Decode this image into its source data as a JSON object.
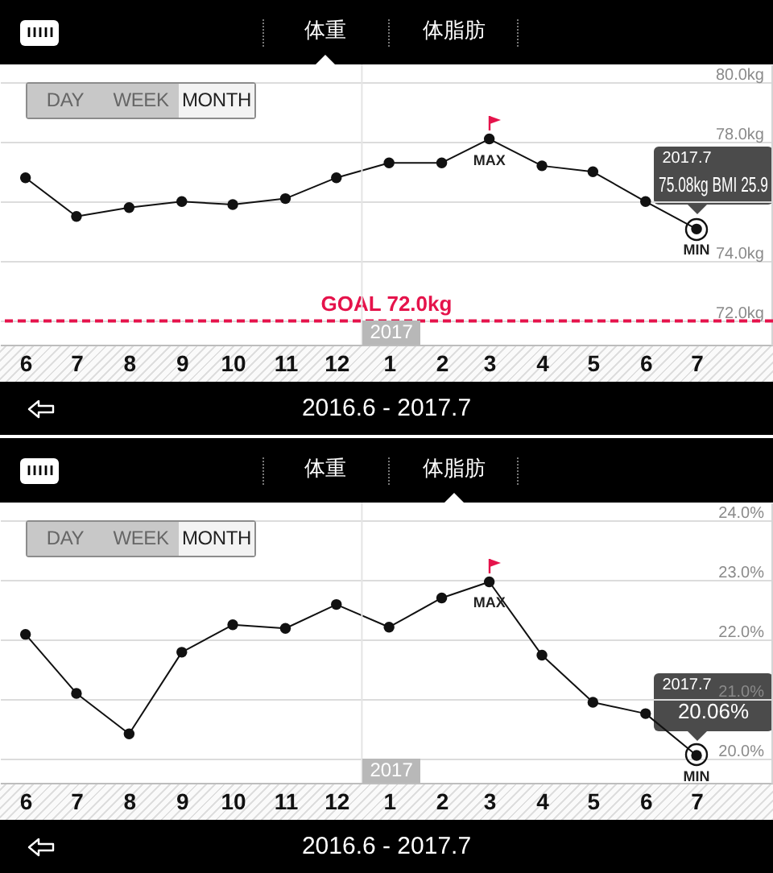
{
  "chart_data": [
    {
      "type": "line",
      "title": "体重",
      "subtitle": "2016.6 - 2017.7",
      "x": [
        "2016-06",
        "2016-07",
        "2016-08",
        "2016-09",
        "2016-10",
        "2016-11",
        "2016-12",
        "2017-01",
        "2017-02",
        "2017-03",
        "2017-04",
        "2017-05",
        "2017-06",
        "2017-07"
      ],
      "series": [
        {
          "color": "#111111",
          "values": [
            76.8,
            75.5,
            75.8,
            76.0,
            75.9,
            76.1,
            76.8,
            77.3,
            77.3,
            78.1,
            77.2,
            77.0,
            76.0,
            75.08
          ]
        }
      ],
      "xlim": [
        "2016-05-17",
        "2017-08-15"
      ],
      "xticks": [
        {
          "value": "2016-06",
          "label": "6"
        },
        {
          "value": "2016-07",
          "label": "7"
        },
        {
          "value": "2016-08",
          "label": "8"
        },
        {
          "value": "2016-09",
          "label": "9"
        },
        {
          "value": "2016-10",
          "label": "10"
        },
        {
          "value": "2016-11",
          "label": "11"
        },
        {
          "value": "2016-12",
          "label": "12"
        },
        {
          "value": "2017-01",
          "label": "1"
        },
        {
          "value": "2017-02",
          "label": "2"
        },
        {
          "value": "2017-03",
          "label": "3"
        },
        {
          "value": "2017-04",
          "label": "4"
        },
        {
          "value": "2017-05",
          "label": "5"
        },
        {
          "value": "2017-06",
          "label": "6"
        },
        {
          "value": "2017-07",
          "label": "7"
        }
      ],
      "ylim": [
        71.2,
        80.6
      ],
      "yticks": [
        {
          "value": 72,
          "label": "72.0kg"
        },
        {
          "value": 74,
          "label": "74.0kg"
        },
        {
          "value": 76,
          "label": null
        },
        {
          "value": 78,
          "label": "78.0kg"
        },
        {
          "value": 80,
          "label": "80.0kg"
        }
      ],
      "grid": "y",
      "marker": "circle",
      "ref_lines": [
        {
          "axis": "y",
          "value": 72,
          "label": "GOAL 72.0kg",
          "color": "#e5134b",
          "line_style": "dashed"
        },
        {
          "axis": "x",
          "value": "2016-12-16",
          "label": "2017",
          "color": "#e4e4e4"
        }
      ],
      "annotations": [
        "体脂肪",
        "DAY",
        "WEEK",
        "MONTH",
        "2017.7",
        {
          "text": "MAX",
          "x": "2017-03",
          "y": 78.1
        },
        {
          "text": "MIN",
          "x": "2017-07",
          "y": 75.08
        },
        {
          "text": "75.08kg BMI 25.9",
          "x": "2017-07",
          "y": 75.08
        }
      ]
    },
    {
      "type": "line",
      "title": "体脂肪",
      "subtitle": "2016.6 - 2017.7",
      "x": [
        "2016-06",
        "2016-07",
        "2016-08",
        "2016-09",
        "2016-10",
        "2016-11",
        "2016-12",
        "2017-01",
        "2017-02",
        "2017-03",
        "2017-04",
        "2017-05",
        "2017-06",
        "2017-07"
      ],
      "series": [
        {
          "color": "#111111",
          "values": [
            22.09,
            21.1,
            20.42,
            21.79,
            22.25,
            22.19,
            22.59,
            22.21,
            22.7,
            22.97,
            21.74,
            20.95,
            20.76,
            20.06
          ]
        }
      ],
      "xlim": [
        "2016-05-17",
        "2017-08-15"
      ],
      "xticks": [
        {
          "value": "2016-06",
          "label": "6"
        },
        {
          "value": "2016-07",
          "label": "7"
        },
        {
          "value": "2016-08",
          "label": "8"
        },
        {
          "value": "2016-09",
          "label": "9"
        },
        {
          "value": "2016-10",
          "label": "10"
        },
        {
          "value": "2016-11",
          "label": "11"
        },
        {
          "value": "2016-12",
          "label": "12"
        },
        {
          "value": "2017-01",
          "label": "1"
        },
        {
          "value": "2017-02",
          "label": "2"
        },
        {
          "value": "2017-03",
          "label": "3"
        },
        {
          "value": "2017-04",
          "label": "4"
        },
        {
          "value": "2017-05",
          "label": "5"
        },
        {
          "value": "2017-06",
          "label": "6"
        },
        {
          "value": "2017-07",
          "label": "7"
        }
      ],
      "ylim": [
        19.6,
        24.3
      ],
      "yticks": [
        {
          "value": 20,
          "label": "20.0%"
        },
        {
          "value": 21,
          "label": "21.0%"
        },
        {
          "value": 22,
          "label": "22.0%"
        },
        {
          "value": 23,
          "label": "23.0%"
        },
        {
          "value": 24,
          "label": "24.0%"
        }
      ],
      "grid": "y",
      "marker": "circle",
      "ref_lines": [
        {
          "axis": "x",
          "value": "2016-12-16",
          "label": "2017",
          "color": "#e4e4e4"
        }
      ],
      "annotations": [
        "体重",
        "DAY",
        "WEEK",
        "MONTH",
        "2017.7",
        {
          "text": "MAX",
          "x": "2017-03",
          "y": 22.97
        },
        {
          "text": "MIN",
          "x": "2017-07",
          "y": 20.06
        },
        {
          "text": "20.06%",
          "x": "2017-07",
          "y": 20.06
        }
      ]
    }
  ]
}
